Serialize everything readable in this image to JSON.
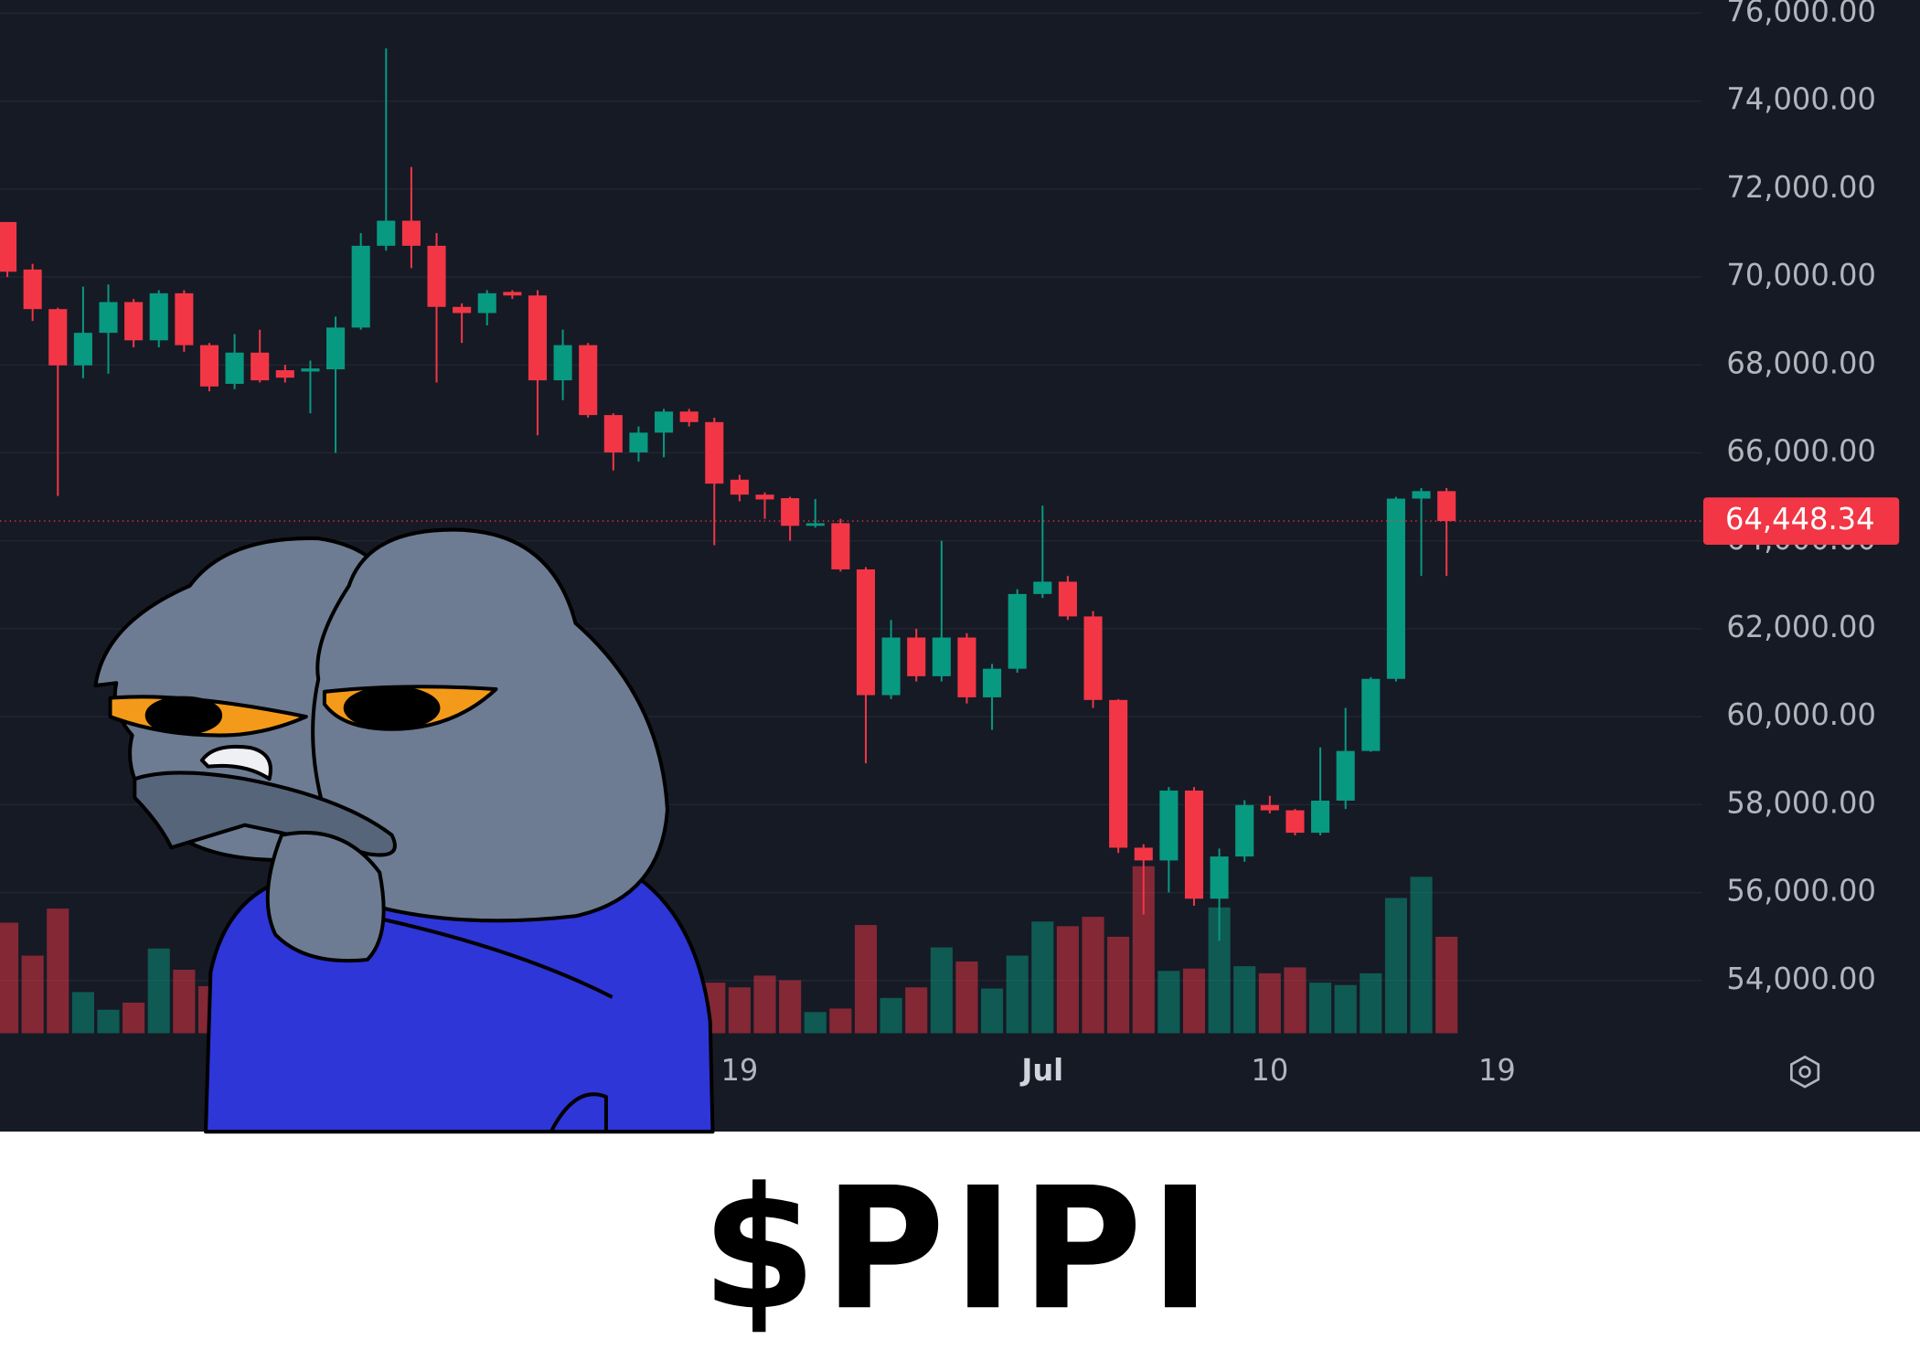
{
  "chart_data": {
    "type": "candlestick",
    "categories": [
      null,
      null,
      null,
      null,
      null,
      null,
      null,
      null,
      null,
      null,
      null,
      null,
      null,
      null,
      null,
      null,
      null,
      null,
      null,
      null,
      null,
      null,
      null,
      null,
      null,
      null,
      null,
      null,
      null,
      "19",
      null,
      null,
      null,
      null,
      null,
      null,
      null,
      null,
      null,
      null,
      null,
      "Jul",
      null,
      null,
      null,
      null,
      null,
      null,
      null,
      null,
      "10",
      null,
      null,
      null,
      null,
      null,
      null,
      null,
      null,
      "19"
    ],
    "open": [
      71250,
      70170,
      69270,
      67990,
      68730,
      69430,
      68560,
      69630,
      68450,
      67570,
      68280,
      67880,
      67850,
      67900,
      68850,
      70710,
      71280,
      70710,
      69320,
      69180,
      69660,
      69580,
      67650,
      68450,
      66860,
      66010,
      66460,
      66940,
      66700,
      65390,
      65050,
      64970,
      64340,
      64400,
      63350,
      60490,
      61800,
      60920,
      61800,
      60440,
      61090,
      62790,
      63070,
      62280,
      60380,
      57020,
      56730,
      58320,
      55860,
      56820,
      57990,
      57870,
      57360,
      58090,
      59220,
      60860,
      64960,
      65130,
      null,
      null
    ],
    "high": [
      71250,
      70300,
      69300,
      69780,
      69830,
      69500,
      69700,
      69700,
      68500,
      68700,
      68800,
      68000,
      68100,
      69100,
      71000,
      75200,
      72500,
      71000,
      69400,
      69700,
      69700,
      69700,
      68800,
      68500,
      66900,
      66600,
      67000,
      67000,
      66800,
      65500,
      65100,
      65000,
      64950,
      64500,
      63400,
      62200,
      62000,
      64000,
      61900,
      61200,
      62900,
      64800,
      63200,
      62400,
      60400,
      57100,
      58400,
      58400,
      57000,
      58100,
      58200,
      57900,
      59300,
      60200,
      60900,
      65000,
      65200,
      65200,
      null,
      null
    ],
    "low": [
      70000,
      69000,
      65020,
      67700,
      67800,
      68400,
      68400,
      68300,
      67400,
      67450,
      67600,
      67600,
      66900,
      66000,
      68800,
      70600,
      70200,
      67600,
      68500,
      68900,
      69500,
      66400,
      67200,
      66800,
      65600,
      65800,
      65900,
      66600,
      63900,
      64900,
      64500,
      64000,
      64300,
      63300,
      58940,
      60400,
      60800,
      60800,
      60300,
      59700,
      61000,
      62700,
      62200,
      60200,
      56900,
      55500,
      56000,
      55700,
      54900,
      56700,
      57800,
      57300,
      57300,
      57900,
      59200,
      60800,
      63200,
      63200,
      null,
      null
    ],
    "close": [
      70120,
      69270,
      67990,
      68730,
      69430,
      68560,
      69630,
      68450,
      67510,
      68280,
      67650,
      67710,
      67920,
      68850,
      70710,
      71280,
      70710,
      69320,
      69180,
      69630,
      69580,
      67650,
      68450,
      66860,
      66010,
      66460,
      66940,
      66700,
      65300,
      65050,
      64940,
      64340,
      64400,
      63350,
      60490,
      61800,
      60920,
      61800,
      60440,
      61090,
      62790,
      63070,
      62280,
      60380,
      57020,
      56730,
      58320,
      55860,
      56820,
      57990,
      57870,
      57360,
      58090,
      59220,
      60860,
      64960,
      65130,
      64448.34,
      null,
      null
    ],
    "volume": [
      94,
      66,
      106,
      35,
      20,
      26,
      72,
      54,
      40,
      30,
      25,
      20,
      22,
      45,
      60,
      80,
      55,
      70,
      35,
      30,
      28,
      60,
      40,
      50,
      45,
      30,
      28,
      35,
      43,
      39,
      49,
      45,
      18,
      21,
      92,
      30,
      39,
      73,
      61,
      38,
      66,
      95,
      91,
      99,
      82,
      142,
      53,
      55,
      107,
      57,
      51,
      56,
      43,
      41,
      51,
      115,
      133,
      82,
      null,
      null
    ],
    "up_color": "#089981",
    "down_color": "#f23645",
    "ylim": [
      52800,
      76300
    ],
    "yticks": [
      {
        "value": 54000,
        "label": "54,000.00"
      },
      {
        "value": 56000,
        "label": "56,000.00"
      },
      {
        "value": 58000,
        "label": "58,000.00"
      },
      {
        "value": 60000,
        "label": "60,000.00"
      },
      {
        "value": 62000,
        "label": "62,000.00"
      },
      {
        "value": 64000,
        "label": "64,000.00"
      },
      {
        "value": 66000,
        "label": "66,000.00"
      },
      {
        "value": 68000,
        "label": "68,000.00"
      },
      {
        "value": 70000,
        "label": "70,000.00"
      },
      {
        "value": 72000,
        "label": "72,000.00"
      },
      {
        "value": 74000,
        "label": "74,000.00"
      },
      {
        "value": 76000,
        "label": "76,000.00"
      }
    ],
    "last_price": {
      "value": 64448.34,
      "label": "64,448.34"
    },
    "grid": true
  },
  "caption": "$PIPI"
}
